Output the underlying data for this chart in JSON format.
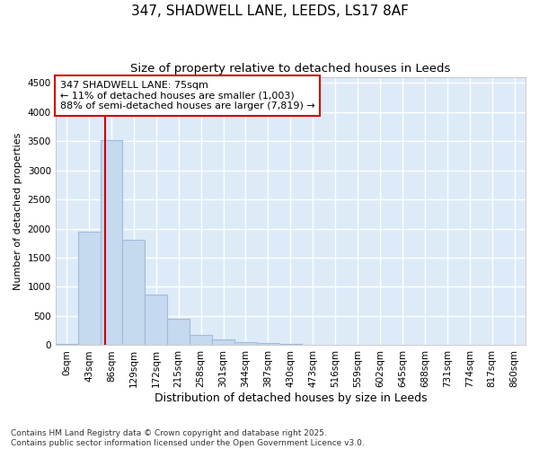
{
  "title1": "347, SHADWELL LANE, LEEDS, LS17 8AF",
  "title2": "Size of property relative to detached houses in Leeds",
  "xlabel": "Distribution of detached houses by size in Leeds",
  "ylabel": "Number of detached properties",
  "bar_color": "#c5d9ef",
  "bar_edge_color": "#a0bcd8",
  "plot_bg_color": "#ddeaf8",
  "fig_bg_color": "#ffffff",
  "grid_color": "#ffffff",
  "categories": [
    "0sqm",
    "43sqm",
    "86sqm",
    "129sqm",
    "172sqm",
    "215sqm",
    "258sqm",
    "301sqm",
    "344sqm",
    "387sqm",
    "430sqm",
    "473sqm",
    "516sqm",
    "559sqm",
    "602sqm",
    "645sqm",
    "688sqm",
    "731sqm",
    "774sqm",
    "817sqm",
    "860sqm"
  ],
  "values": [
    30,
    1950,
    3520,
    1800,
    870,
    460,
    175,
    100,
    60,
    40,
    20,
    0,
    0,
    0,
    0,
    0,
    0,
    0,
    0,
    0,
    0
  ],
  "ylim": [
    0,
    4600
  ],
  "yticks": [
    0,
    500,
    1000,
    1500,
    2000,
    2500,
    3000,
    3500,
    4000,
    4500
  ],
  "vline_x": 1.74,
  "vline_color": "#cc0000",
  "annotation_line1": "347 SHADWELL LANE: 75sqm",
  "annotation_line2": "← 11% of detached houses are smaller (1,003)",
  "annotation_line3": "88% of semi-detached houses are larger (7,819) →",
  "annotation_box_color": "#cc0000",
  "footer1": "Contains HM Land Registry data © Crown copyright and database right 2025.",
  "footer2": "Contains public sector information licensed under the Open Government Licence v3.0.",
  "title_fontsize": 11,
  "subtitle_fontsize": 9.5,
  "tick_fontsize": 7.5,
  "label_fontsize": 9,
  "ylabel_fontsize": 8,
  "annotation_fontsize": 8,
  "footer_fontsize": 6.5
}
